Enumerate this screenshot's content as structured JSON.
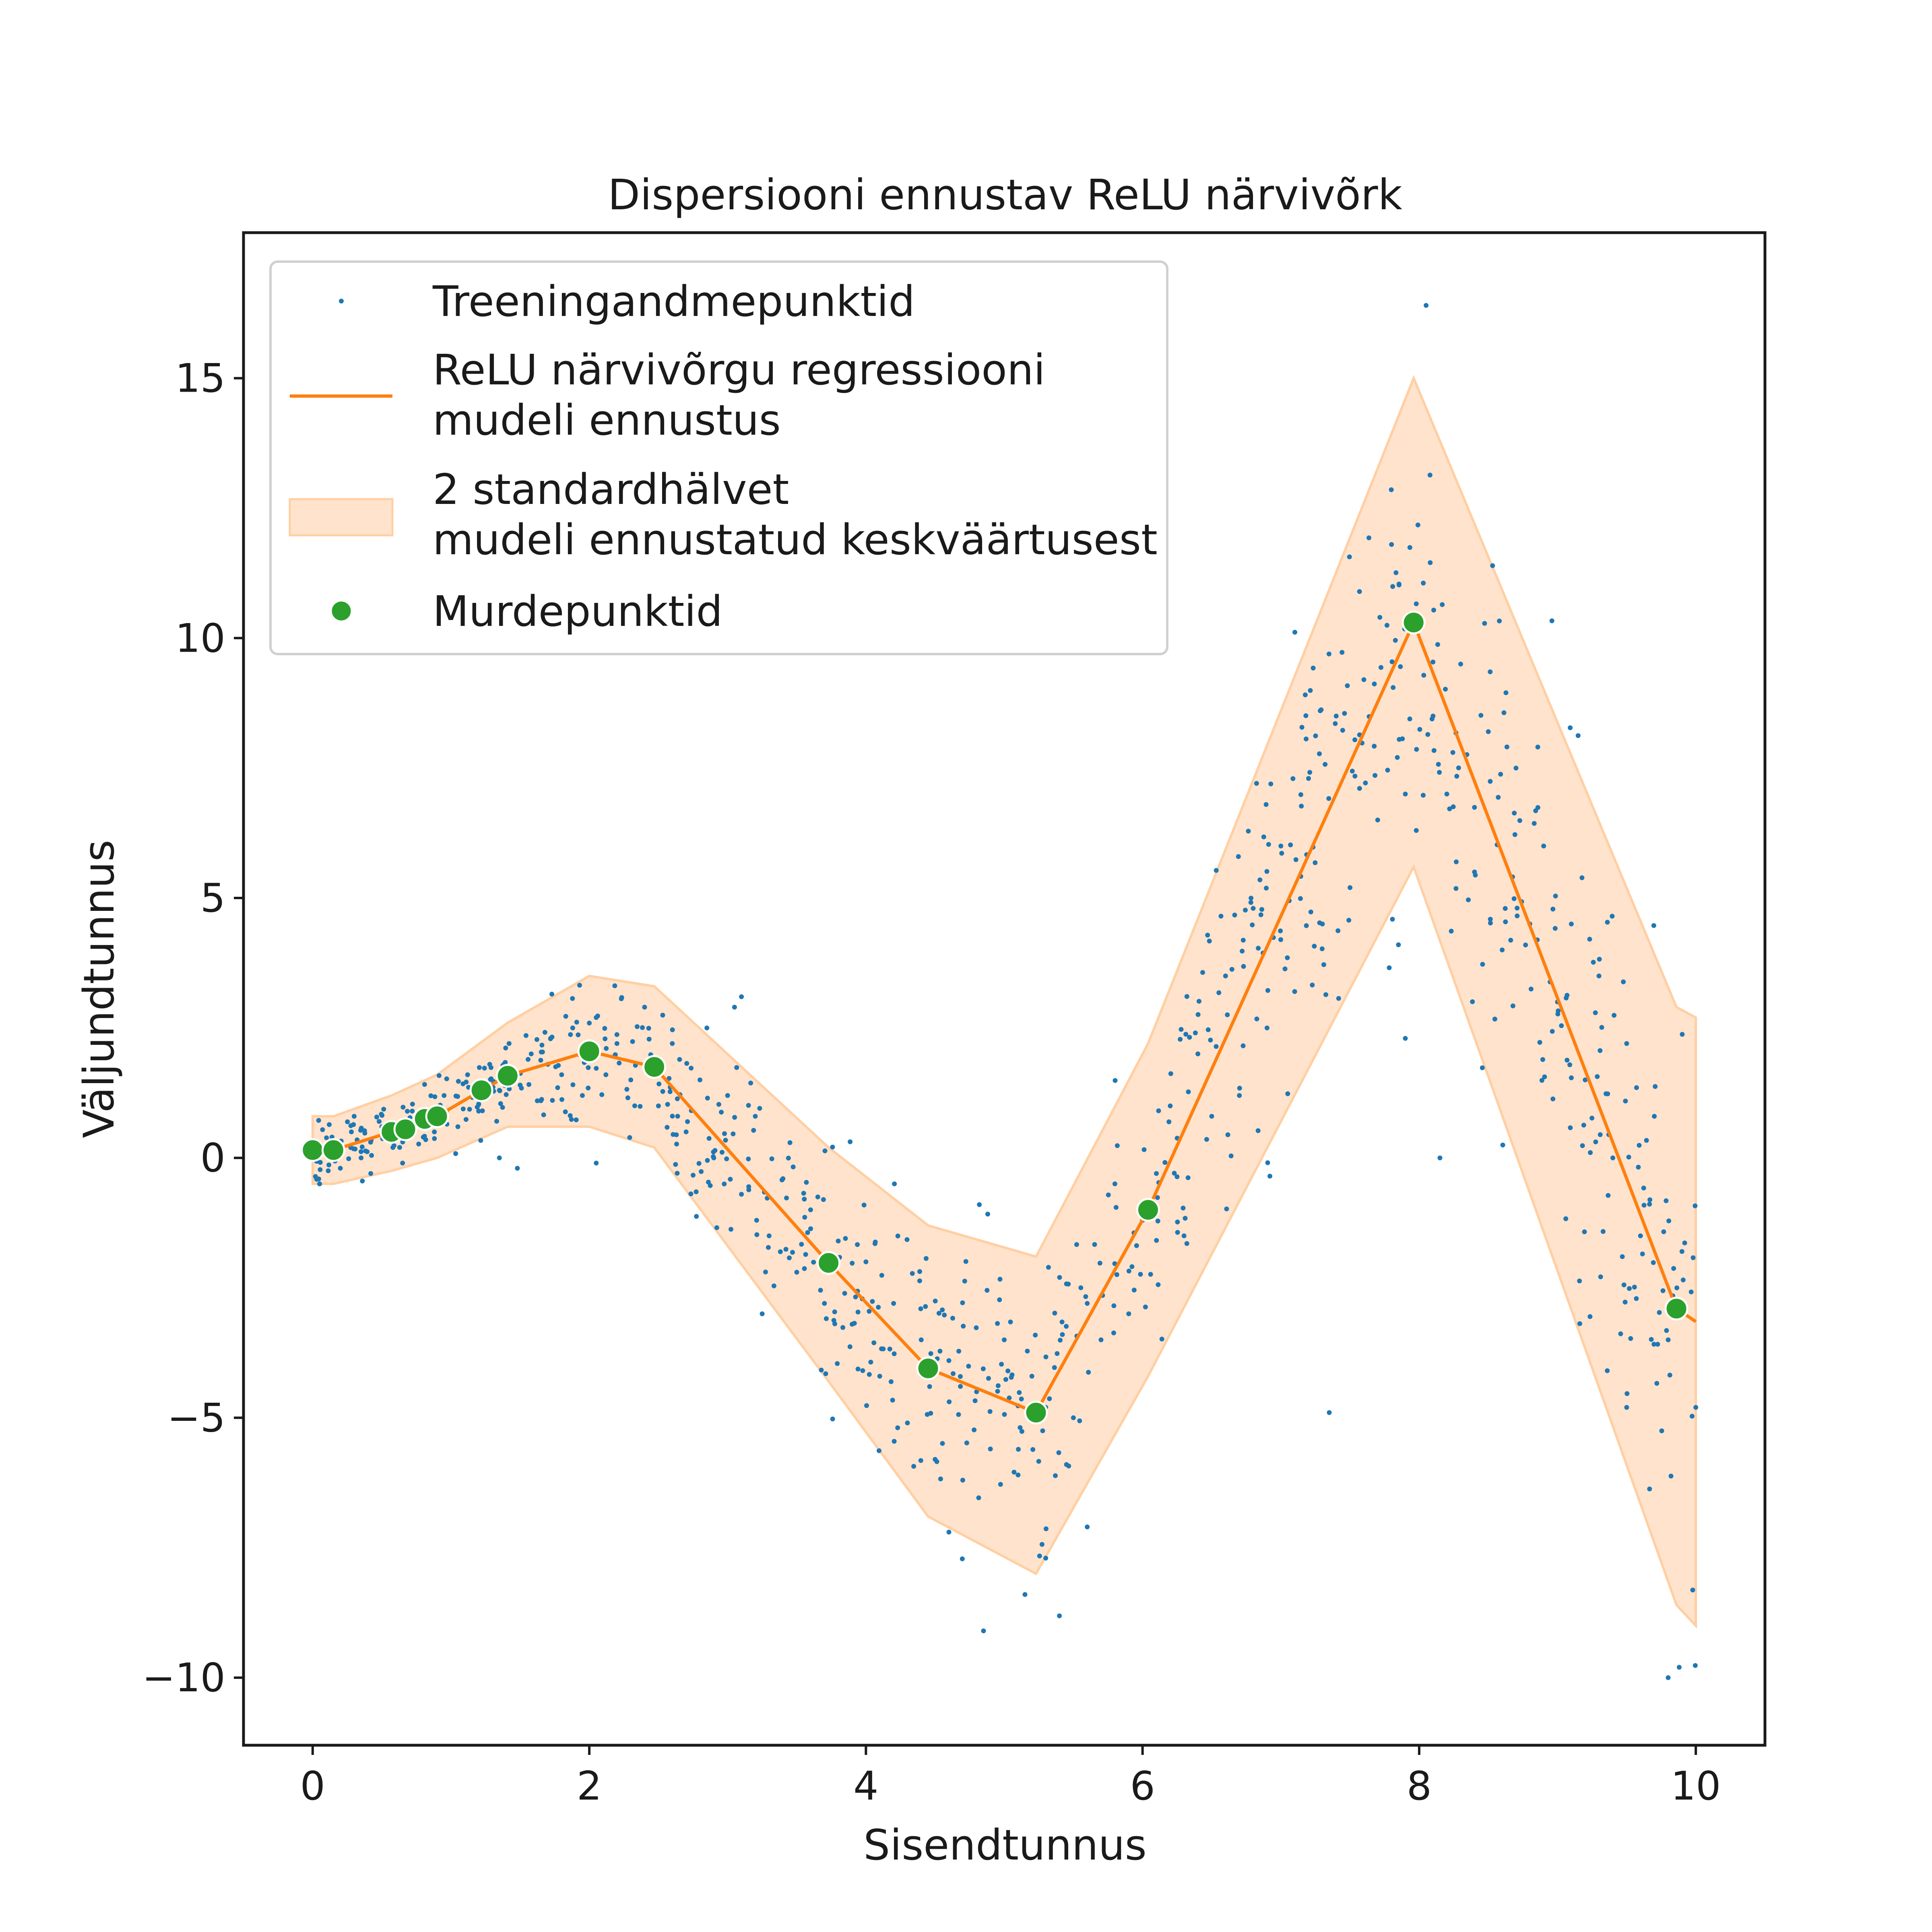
{
  "chart_data": {
    "type": "line",
    "title": "Dispersiooni ennustav ReLU närvivõrk",
    "xlabel": "Sisendtunnus",
    "ylabel": "Väljundtunnus",
    "xlim": [
      -0.5,
      10.5
    ],
    "ylim": [
      -11.3,
      17.8
    ],
    "xticks": [
      0,
      2,
      4,
      6,
      8,
      10
    ],
    "xtick_labels": [
      "0",
      "2",
      "4",
      "6",
      "8",
      "10"
    ],
    "yticks": [
      -10,
      -5,
      0,
      5,
      10,
      15
    ],
    "ytick_labels": [
      "−10",
      "−5",
      "0",
      "5",
      "10",
      "15"
    ],
    "grid": false,
    "legend_position": "top-left",
    "legend": [
      {
        "kind": "scatter",
        "lines": [
          "Treeningandmepunktid"
        ]
      },
      {
        "kind": "line",
        "lines": [
          "ReLU närvivõrgu regressiooni",
          "mudeli ennustus"
        ]
      },
      {
        "kind": "band",
        "lines": [
          "2 standardhälvet",
          "mudeli ennustatud keskväärtusest"
        ]
      },
      {
        "kind": "marker",
        "lines": [
          "Murdepunktid"
        ]
      }
    ],
    "colors": {
      "scatter": "#1f77b4",
      "line": "#ff7f0e",
      "band": "#ffe3cc",
      "band_edge": "#ffcfa3",
      "breakpoints": "#2ca02c"
    },
    "prediction": {
      "x": [
        0,
        0.15,
        0.57,
        0.67,
        0.81,
        0.9,
        1.22,
        1.41,
        2.0,
        2.47,
        3.73,
        4.45,
        5.23,
        6.04,
        7.96,
        9.86,
        10.0
      ],
      "y": [
        0.15,
        0.15,
        0.5,
        0.55,
        0.75,
        0.8,
        1.3,
        1.58,
        2.05,
        1.75,
        -2.02,
        -4.05,
        -4.9,
        -1.0,
        10.3,
        -2.9,
        -3.15
      ]
    },
    "band": {
      "x": [
        0,
        0.15,
        0.57,
        0.9,
        1.41,
        2.0,
        2.47,
        3.73,
        4.45,
        5.23,
        6.04,
        7.96,
        9.86,
        10.0
      ],
      "upper": [
        0.8,
        0.8,
        1.2,
        1.6,
        2.6,
        3.5,
        3.3,
        0.2,
        -1.3,
        -1.9,
        2.2,
        15.0,
        2.9,
        2.7
      ],
      "lower": [
        -0.5,
        -0.5,
        -0.25,
        0.0,
        0.6,
        0.6,
        0.2,
        -4.3,
        -6.9,
        -8.0,
        -4.2,
        5.6,
        -8.6,
        -9.0
      ]
    },
    "breakpoints": {
      "x": [
        0.0,
        0.15,
        0.57,
        0.67,
        0.81,
        0.9,
        1.22,
        1.41,
        2.0,
        2.47,
        3.73,
        4.45,
        5.23,
        6.04,
        7.96,
        9.86
      ],
      "y": [
        0.15,
        0.15,
        0.5,
        0.55,
        0.75,
        0.8,
        1.3,
        1.58,
        2.05,
        1.75,
        -2.02,
        -4.05,
        -4.9,
        -1.0,
        10.3,
        -2.9
      ]
    },
    "training_points": {
      "note_count": 900,
      "x": [
        0.05,
        0.12,
        0.2,
        0.28,
        0.35,
        0.42,
        0.5,
        0.58,
        0.65,
        0.72,
        0.8,
        0.88,
        0.95,
        1.05,
        1.12,
        1.2,
        1.28,
        1.35,
        1.42,
        1.5,
        1.58,
        1.65,
        1.72,
        1.8,
        1.88,
        1.95,
        2.05,
        2.12,
        2.2,
        2.3,
        2.4,
        2.5,
        2.6,
        2.7,
        2.8,
        2.9,
        3.0,
        3.1,
        3.2,
        3.3,
        3.4,
        3.5,
        3.6,
        3.7,
        3.8,
        3.9,
        4.0,
        4.1,
        4.2,
        4.3,
        4.4,
        4.5,
        4.6,
        4.7,
        4.8,
        4.9,
        5.0,
        5.1,
        5.2,
        5.3,
        5.4,
        5.5,
        5.6,
        5.7,
        5.8,
        5.9,
        6.0,
        6.1,
        6.2,
        6.3,
        6.4,
        6.5,
        6.6,
        6.7,
        6.8,
        6.9,
        7.0,
        7.1,
        7.2,
        7.3,
        7.4,
        7.5,
        7.6,
        7.7,
        7.8,
        7.9,
        8.0,
        8.1,
        8.2,
        8.3,
        8.4,
        8.5,
        8.6,
        8.7,
        8.8,
        8.9,
        9.0,
        9.1,
        9.2,
        9.3,
        9.4,
        9.5,
        9.6,
        9.7,
        9.8,
        9.9,
        10.0,
        1.35,
        1.48,
        1.7,
        3.1,
        3.25,
        4.85,
        4.6,
        5.3,
        5.45,
        5.6,
        7.9,
        7.85,
        8.05,
        8.15,
        9.8,
        9.88,
        7.35,
        9.5,
        3.05,
        5.15,
        4.82,
        0.05,
        2.05,
        0.3,
        2.85
      ],
      "y": [
        -0.5,
        0.3,
        -0.2,
        0.5,
        0.0,
        -0.3,
        0.6,
        0.2,
        -0.1,
        0.9,
        0.4,
        0.5,
        1.2,
        0.6,
        1.6,
        0.9,
        1.8,
        1.3,
        2.2,
        1.4,
        2.0,
        1.1,
        2.3,
        1.6,
        2.5,
        1.2,
        2.7,
        1.6,
        2.2,
        1.5,
        2.9,
        1.0,
        2.2,
        0.5,
        1.5,
        0.0,
        1.2,
        -0.7,
        0.8,
        -1.5,
        -0.4,
        -2.2,
        -1.0,
        -2.8,
        -1.6,
        -3.2,
        -2.0,
        -4.2,
        -2.8,
        -5.1,
        -3.5,
        -5.8,
        -3.9,
        -6.2,
        -4.5,
        -5.6,
        -3.5,
        -6.1,
        -4.2,
        -4.8,
        -2.3,
        -5.0,
        -2.8,
        -3.5,
        -0.5,
        -3.0,
        -1.2,
        -0.3,
        1.0,
        -1.5,
        2.0,
        0.8,
        3.5,
        1.2,
        4.8,
        2.5,
        6.0,
        3.2,
        7.3,
        4.5,
        8.5,
        5.2,
        9.2,
        6.5,
        11.8,
        7.0,
        10.2,
        8.5,
        7.0,
        9.5,
        5.5,
        8.2,
        4.0,
        7.5,
        4.5,
        6.0,
        3.0,
        4.5,
        1.5,
        3.5,
        0.0,
        2.2,
        -1.5,
        0.8,
        -3.5,
        -1.8,
        -4.8,
        0.0,
        -0.2,
        1.8,
        3.1,
        -3.0,
        -9.1,
        -7.2,
        -7.7,
        -5.9,
        -7.1,
        2.3,
        4.1,
        16.4,
        0.0,
        -10.0,
        -9.8,
        -4.9,
        -4.8,
        2.9,
        -8.4,
        -0.9,
        -0.5,
        -0.1,
        0.8,
        2.5
      ]
    }
  }
}
